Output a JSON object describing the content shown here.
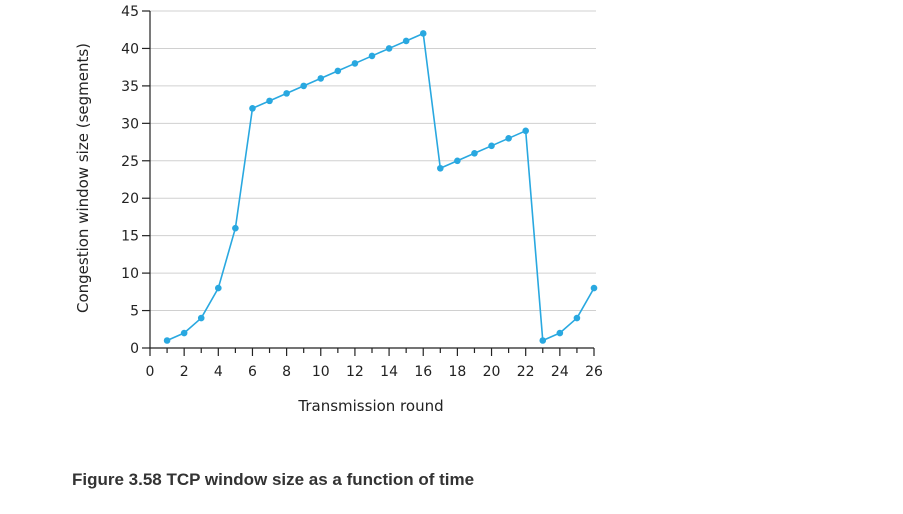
{
  "caption": "Figure 3.58 TCP window size as a function of time",
  "chart_data": {
    "type": "line",
    "xlabel": "Transmission round",
    "ylabel": "Congestion window size (segments)",
    "xlim": [
      0,
      26
    ],
    "ylim": [
      0,
      45
    ],
    "xticks": [
      0,
      2,
      4,
      6,
      8,
      10,
      12,
      14,
      16,
      18,
      20,
      22,
      24,
      26
    ],
    "yticks": [
      0,
      5,
      10,
      15,
      20,
      25,
      30,
      35,
      40,
      45
    ],
    "grid": "horizontal",
    "line_color": "#29a8e0",
    "series": [
      {
        "x": [
          1,
          2,
          3,
          4,
          5,
          6,
          7,
          8,
          9,
          10,
          11,
          12,
          13,
          14,
          15,
          16,
          17,
          18,
          19,
          20,
          21,
          22,
          23,
          24,
          25,
          26
        ],
        "y": [
          1,
          2,
          4,
          8,
          16,
          32,
          33,
          34,
          35,
          36,
          37,
          38,
          39,
          40,
          41,
          42,
          24,
          25,
          26,
          27,
          28,
          29,
          1,
          2,
          4,
          8
        ]
      }
    ]
  }
}
